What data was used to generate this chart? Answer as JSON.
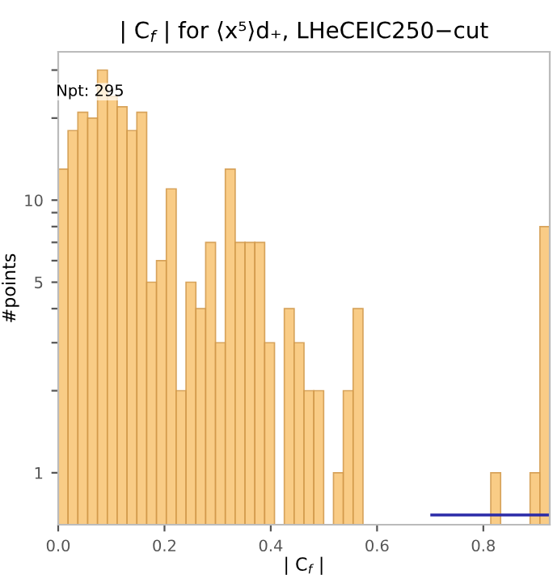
{
  "chart_data": {
    "type": "histogram",
    "title": "| C$_{f}$ | for ⟨x⁵⟩d₊, LHeCEIC250−cut",
    "xlabel": "| C$_{f}$ |",
    "ylabel": "#points",
    "bins": [
      0,
      0.0185,
      0.037,
      0.0555,
      0.074,
      0.0925,
      0.111,
      0.1295,
      0.148,
      0.1665,
      0.185,
      0.2035,
      0.222,
      0.2405,
      0.259,
      0.2775,
      0.296,
      0.3145,
      0.333,
      0.3515,
      0.37,
      0.3885,
      0.407,
      0.4255,
      0.444,
      0.4625,
      0.481,
      0.4995,
      0.518,
      0.5365,
      0.555,
      0.5735,
      0.592,
      0.6105,
      0.629,
      0.6475,
      0.666,
      0.6845,
      0.703,
      0.7215,
      0.74,
      0.7585,
      0.777,
      0.7955,
      0.814,
      0.8325,
      0.851,
      0.8695,
      0.888,
      0.9065,
      0.925
    ],
    "values": [
      13,
      18,
      21,
      20,
      30,
      24,
      22,
      18,
      21,
      5,
      6,
      11,
      2,
      5,
      4,
      7,
      3,
      13,
      7,
      7,
      7,
      3,
      null,
      4,
      3,
      2,
      2,
      null,
      1,
      2,
      4,
      null,
      null,
      null,
      null,
      null,
      null,
      null,
      null,
      null,
      null,
      null,
      null,
      null,
      1,
      null,
      null,
      null,
      1,
      8
    ],
    "color": "#f9c77a",
    "series": [
      {
        "type": "line",
        "x": [
          0.703,
          0.925
        ],
        "values": [
          0.7,
          0.7
        ],
        "color": "#2a2aa8"
      }
    ],
    "annotations": [
      {
        "text": "Npt: 295",
        "x": 0.06,
        "y": 25
      }
    ],
    "log": true,
    "xlim": [
      0,
      0.925
    ],
    "ylim": [
      0.645,
      35
    ],
    "xticks": [
      {
        "value": 0,
        "label": "0.0"
      },
      {
        "value": 0.2,
        "label": "0.2"
      },
      {
        "value": 0.4,
        "label": "0.4"
      },
      {
        "value": 0.6,
        "label": "0.6"
      },
      {
        "value": 0.8,
        "label": "0.8"
      }
    ],
    "yticks": [
      1,
      {
        "value": 2,
        "label": null
      },
      {
        "value": 3,
        "label": null
      },
      {
        "value": 4,
        "label": null
      },
      5,
      {
        "value": 6,
        "label": null
      },
      {
        "value": 7,
        "label": null
      },
      {
        "value": 8,
        "label": null
      },
      {
        "value": 9,
        "label": null
      },
      10,
      {
        "value": 20,
        "label": null
      },
      {
        "value": 30,
        "label": null
      }
    ],
    "grid": false,
    "legend": false
  }
}
